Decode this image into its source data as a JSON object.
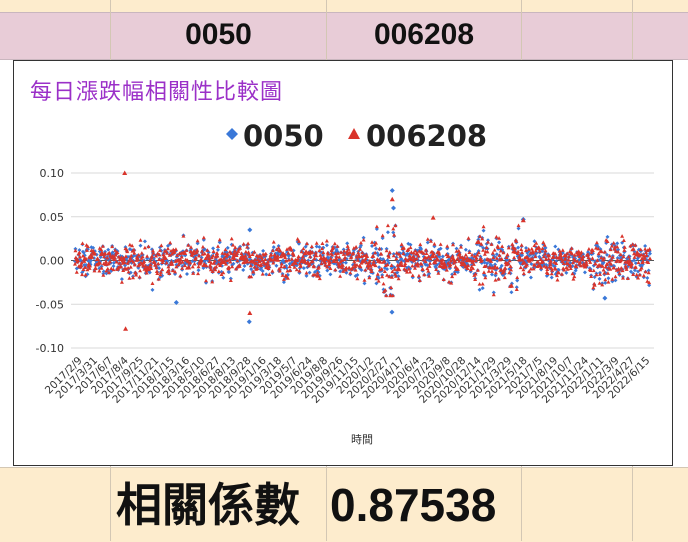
{
  "sheet": {
    "header_col1": "0050",
    "header_col2": "006208",
    "corr_label": "相關係數",
    "corr_value": "0.87538"
  },
  "chart_data": {
    "type": "scatter",
    "title": "每日漲跌幅相關性比較圖",
    "xlabel": "時間",
    "ylabel": "",
    "ylim": [
      -0.1,
      0.1
    ],
    "yticks": [
      "0.10",
      "0.05",
      "0.00",
      "-0.05",
      "-0.10"
    ],
    "grid": true,
    "legend_position": "top",
    "colors": {
      "0050": "#3a78d8",
      "006208": "#d9342b"
    },
    "x_tick_labels": [
      "2017/2/9",
      "2017/3/31",
      "2017/6/7",
      "2017/8/4",
      "2017/9/25",
      "2017/11/21",
      "2018/1/15",
      "2018/3/16",
      "2018/5/10",
      "2018/6/27",
      "2018/8/13",
      "2018/9/28",
      "2019/1/16",
      "2019/3/18",
      "2019/5/7",
      "2019/6/24",
      "2019/8/8",
      "2019/9/26",
      "2019/11/15",
      "2020/1/2",
      "2020/2/27",
      "2020/4/17",
      "2020/6/4",
      "2020/7/23",
      "2020/9/8",
      "2020/10/28",
      "2020/12/14",
      "2021/1/29",
      "2021/3/29",
      "2021/5/18",
      "2021/7/5",
      "2021/8/19",
      "2021/10/7",
      "2021/11/24",
      "2022/1/11",
      "2022/3/9",
      "2022/4/27",
      "2022/6/15"
    ],
    "series": [
      {
        "name": "0050",
        "marker": "diamond",
        "highlights": [
          {
            "date": "2018/2/6",
            "value": -0.048
          },
          {
            "date": "2018/10/11",
            "value": -0.07
          },
          {
            "date": "2018/10/15",
            "value": 0.035
          },
          {
            "date": "2020/3/19",
            "value": -0.059
          },
          {
            "date": "2020/3/20",
            "value": 0.08
          },
          {
            "date": "2020/3/24",
            "value": 0.06
          },
          {
            "date": "2021/5/17",
            "value": 0.047
          },
          {
            "date": "2022/1/28",
            "value": -0.043
          }
        ]
      },
      {
        "name": "006208",
        "marker": "triangle",
        "highlights": [
          {
            "date": "2017/8/4",
            "value": 0.1
          },
          {
            "date": "2017/8/7",
            "value": -0.078
          },
          {
            "date": "2018/10/15",
            "value": -0.06
          },
          {
            "date": "2020/3/20",
            "value": 0.07
          },
          {
            "date": "2020/7/28",
            "value": 0.049
          },
          {
            "date": "2021/5/17",
            "value": 0.046
          }
        ]
      }
    ],
    "n_points_per_series": 1300,
    "typical_daily_range": [
      -0.02,
      0.02
    ]
  }
}
